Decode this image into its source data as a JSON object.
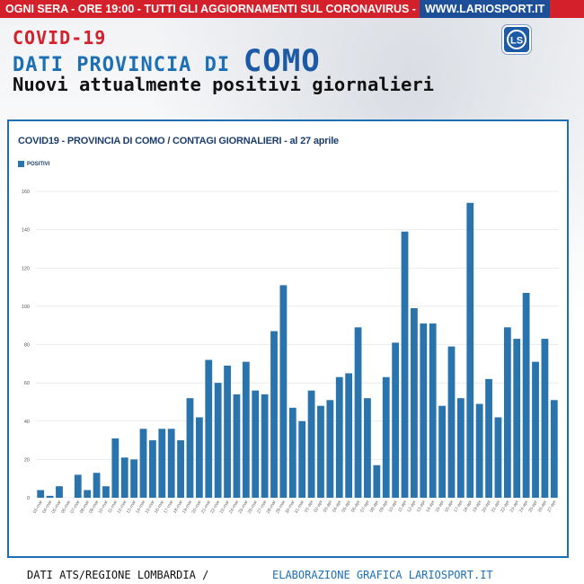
{
  "top_bar": {
    "announcement": "OGNI SERA - ORE 19:00 - TUTTI GLI AGGIORNAMENTI SUL CORONAVIRUS -",
    "site": "WWW.LARIOSPORT.IT"
  },
  "header": {
    "covid_title": "COVID-19",
    "province_label": "DATI PROVINCIA DI",
    "province_name": "COMO",
    "subtitle": "Nuovi attualmente positivi giornalieri",
    "logo_icon": "lariosport-logo-icon",
    "logo_text": "LS"
  },
  "chart_data": {
    "type": "bar",
    "title": "COVID19 - PROVINCIA DI COMO / CONTAGI GIORNALIERI - al 27 aprile",
    "legend": "top-left",
    "grid": true,
    "ylim": [
      0,
      160
    ],
    "yticks": [
      0,
      20,
      40,
      60,
      80,
      100,
      120,
      140,
      160
    ],
    "color": "#2a74ad",
    "categories": [
      "03-mar",
      "04-mar",
      "05-mar",
      "06-mar",
      "07-mar",
      "08-mar",
      "09-mar",
      "10-mar",
      "11-mar",
      "12-mar",
      "13-mar",
      "14-mar",
      "15-mar",
      "16-mar",
      "17-mar",
      "18-mar",
      "19-mar",
      "20-mar",
      "21-mar",
      "22-mar",
      "23-mar",
      "24-mar",
      "25-mar",
      "26-mar",
      "27-mar",
      "28-mar",
      "29-mar",
      "30-mar",
      "31-mar",
      "01-apr",
      "02-apr",
      "03-apr",
      "04-apr",
      "05-apr",
      "06-apr",
      "07-apr",
      "08-apr",
      "09-apr",
      "10-apr",
      "11-apr",
      "12-apr",
      "13-apr",
      "14-apr",
      "15-apr",
      "16-apr",
      "17-apr",
      "18-apr",
      "19-apr",
      "20-apr",
      "21-apr",
      "22-apr",
      "23-apr",
      "24-apr",
      "25-apr",
      "26-apr",
      "27-apr"
    ],
    "series": [
      {
        "name": "POSITIVI",
        "values": [
          4,
          1,
          6,
          0,
          12,
          4,
          13,
          6,
          31,
          21,
          20,
          36,
          30,
          36,
          36,
          30,
          52,
          42,
          72,
          60,
          69,
          54,
          71,
          56,
          54,
          87,
          111,
          47,
          40,
          56,
          48,
          51,
          63,
          65,
          89,
          52,
          17,
          63,
          81,
          139,
          99,
          91,
          91,
          48,
          79,
          52,
          154,
          49,
          62,
          42,
          89,
          83,
          107,
          71,
          83,
          51
        ]
      }
    ]
  },
  "footer": {
    "source": "DATI ATS/REGIONE LOMBARDIA /",
    "credit": "ELABORAZIONE GRAFICA LARIOSPORT.IT"
  }
}
